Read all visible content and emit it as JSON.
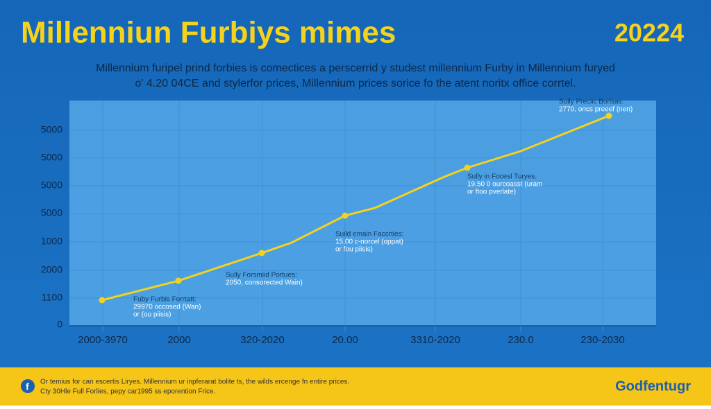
{
  "header": {
    "title": "Millenniun Furbiys mimes",
    "year": "20224",
    "subtitle": [
      "Millennium furipel prind forbies is comectices a perscerrid y studest millennium Furby in Millennium furyed",
      "o' 4.20 04CE and stylerfor prices, Millennium prices sorice fo the atent noritx office corrtel."
    ]
  },
  "y_axis_labels": [
    "5000",
    "5000",
    "5000",
    "5000",
    "1000",
    "2000",
    "1100",
    "0"
  ],
  "x_axis_labels": [
    "2000-3970",
    "2000",
    "320-2020",
    "20.00",
    "3310-2020",
    "230.0",
    "230-2030"
  ],
  "annotations": [
    [
      "Fuby Furbis Forrtatt:",
      "29970 occosed (Wan)",
      "or (ou piisis)"
    ],
    [
      "Sully Forsmiid Portues:",
      "2050, consorected Wain)"
    ],
    [
      "Suild emain Faccrties:",
      "15,00 c-norcel (oppat)",
      "or fou piisis)"
    ],
    [
      "Sully in Focesl Turyes.",
      "19,50 0 ourcoasst (uram",
      "or ftoo pverlate)"
    ],
    [
      "Sully Preciic Borlsas:",
      "2770, oncs preeef (nen)"
    ]
  ],
  "footer": {
    "lines": [
      "Or temius for can escertis Liryes. Millennium ur inpferarat bolite ts, the wilds ercenge fn entire prices.",
      "Cty 30Hle Full Forlies, pepy car1995 ss eporention Frice."
    ],
    "brand": "Godfentugr"
  }
}
